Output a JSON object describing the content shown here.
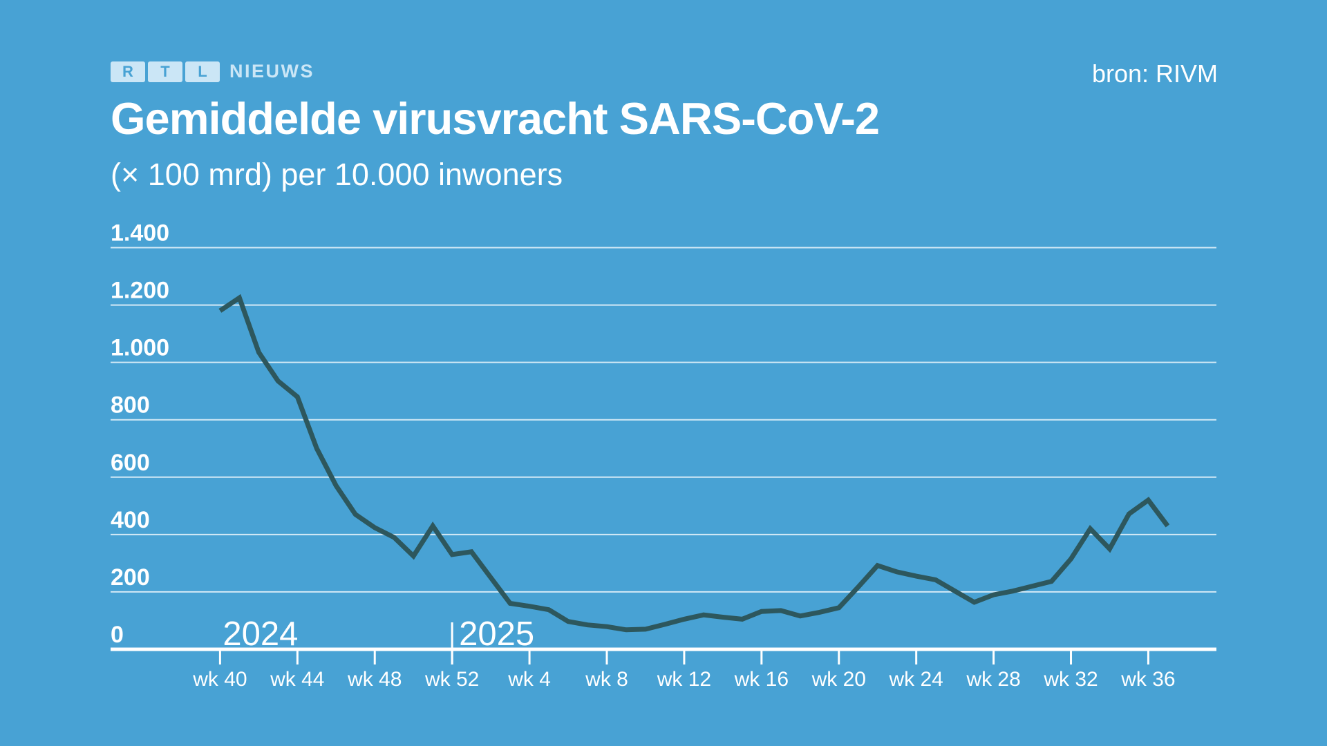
{
  "header": {
    "logo": {
      "letters": [
        "R",
        "T",
        "L"
      ],
      "suffix": "NIEUWS"
    },
    "source": "bron: RIVM",
    "title": "Gemiddelde virusvracht SARS-CoV-2",
    "subtitle": "(× 100 mrd) per 10.000 inwoners"
  },
  "colors": {
    "background": "#48a2d4",
    "line": "#2d575d",
    "grid": "#e4f2fa",
    "text": "#ffffff",
    "logo_light": "#cbe6f6"
  },
  "chart_data": {
    "type": "line",
    "title": "Gemiddelde virusvracht SARS-CoV-2",
    "subtitle": "(× 100 mrd) per 10.000 inwoners",
    "source": "bron: RIVM",
    "xlabel": "",
    "ylabel": "",
    "ylim": [
      0,
      1400
    ],
    "grid": "horizontal",
    "legend": "none",
    "y_tick_labels": [
      "1.400",
      "1.200",
      "1.000",
      "800",
      "600",
      "400",
      "200",
      "0"
    ],
    "y_tick_values": [
      1400,
      1200,
      1000,
      800,
      600,
      400,
      200,
      0
    ],
    "x_tick_labels": [
      "wk 40",
      "wk 44",
      "wk 48",
      "wk 52",
      "wk 4",
      "wk 8",
      "wk 12",
      "wk 16",
      "wk 20",
      "wk 24",
      "wk 28",
      "wk 32",
      "wk 36"
    ],
    "x_tick_week_indices": [
      0,
      4,
      8,
      12,
      16,
      20,
      24,
      28,
      32,
      36,
      40,
      44,
      48
    ],
    "year_labels": [
      {
        "label": "2024",
        "at_week_index": 0,
        "has_divider": false
      },
      {
        "label": "2025",
        "at_week_index": 12,
        "has_divider": true
      }
    ],
    "series": [
      {
        "name": "Gemiddelde virusvracht",
        "color": "#2d575d",
        "points": [
          {
            "year": 2024,
            "week": 40,
            "value": 1180
          },
          {
            "year": 2024,
            "week": 41,
            "value": 1225
          },
          {
            "year": 2024,
            "week": 42,
            "value": 1035
          },
          {
            "year": 2024,
            "week": 43,
            "value": 935
          },
          {
            "year": 2024,
            "week": 44,
            "value": 880
          },
          {
            "year": 2024,
            "week": 45,
            "value": 700
          },
          {
            "year": 2024,
            "week": 46,
            "value": 570
          },
          {
            "year": 2024,
            "week": 47,
            "value": 470
          },
          {
            "year": 2024,
            "week": 48,
            "value": 424
          },
          {
            "year": 2024,
            "week": 49,
            "value": 390
          },
          {
            "year": 2024,
            "week": 50,
            "value": 325
          },
          {
            "year": 2024,
            "week": 51,
            "value": 430
          },
          {
            "year": 2024,
            "week": 52,
            "value": 330
          },
          {
            "year": 2025,
            "week": 1,
            "value": 340
          },
          {
            "year": 2025,
            "week": 2,
            "value": 250
          },
          {
            "year": 2025,
            "week": 3,
            "value": 160
          },
          {
            "year": 2025,
            "week": 4,
            "value": 150
          },
          {
            "year": 2025,
            "week": 5,
            "value": 138
          },
          {
            "year": 2025,
            "week": 6,
            "value": 97
          },
          {
            "year": 2025,
            "week": 7,
            "value": 85
          },
          {
            "year": 2025,
            "week": 8,
            "value": 79
          },
          {
            "year": 2025,
            "week": 9,
            "value": 68
          },
          {
            "year": 2025,
            "week": 10,
            "value": 70
          },
          {
            "year": 2025,
            "week": 11,
            "value": 87
          },
          {
            "year": 2025,
            "week": 12,
            "value": 105
          },
          {
            "year": 2025,
            "week": 13,
            "value": 120
          },
          {
            "year": 2025,
            "week": 14,
            "value": 112
          },
          {
            "year": 2025,
            "week": 15,
            "value": 105
          },
          {
            "year": 2025,
            "week": 16,
            "value": 132
          },
          {
            "year": 2025,
            "week": 17,
            "value": 135
          },
          {
            "year": 2025,
            "week": 18,
            "value": 116
          },
          {
            "year": 2025,
            "week": 19,
            "value": 129
          },
          {
            "year": 2025,
            "week": 20,
            "value": 145
          },
          {
            "year": 2025,
            "week": 21,
            "value": 217
          },
          {
            "year": 2025,
            "week": 22,
            "value": 292
          },
          {
            "year": 2025,
            "week": 23,
            "value": 270
          },
          {
            "year": 2025,
            "week": 24,
            "value": 255
          },
          {
            "year": 2025,
            "week": 25,
            "value": 242
          },
          {
            "year": 2025,
            "week": 26,
            "value": 203
          },
          {
            "year": 2025,
            "week": 27,
            "value": 164
          },
          {
            "year": 2025,
            "week": 28,
            "value": 190
          },
          {
            "year": 2025,
            "week": 29,
            "value": 203
          },
          {
            "year": 2025,
            "week": 30,
            "value": 220
          },
          {
            "year": 2025,
            "week": 31,
            "value": 237
          },
          {
            "year": 2025,
            "week": 32,
            "value": 315
          },
          {
            "year": 2025,
            "week": 33,
            "value": 420
          },
          {
            "year": 2025,
            "week": 34,
            "value": 350
          },
          {
            "year": 2025,
            "week": 35,
            "value": 472
          },
          {
            "year": 2025,
            "week": 36,
            "value": 520
          },
          {
            "year": 2025,
            "week": 37,
            "value": 430
          }
        ]
      }
    ]
  }
}
